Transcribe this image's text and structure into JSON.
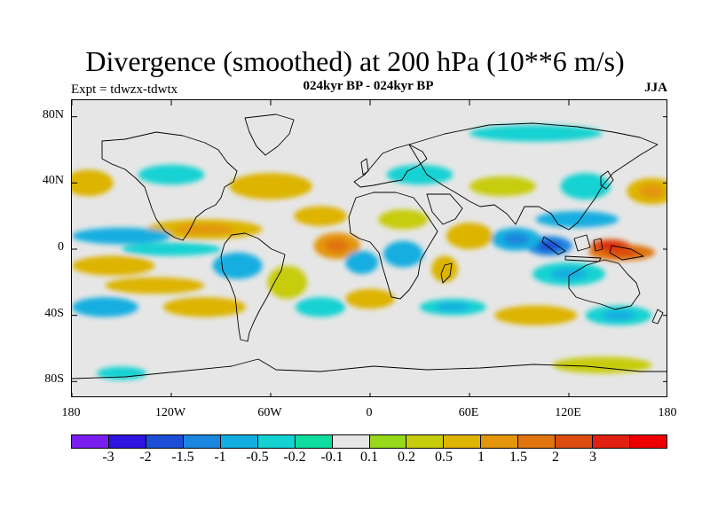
{
  "header": {
    "title": "Divergence (smoothed) at 200 hPa (10**6 m/s)",
    "subtitle": "024kyr BP - 024kyr BP",
    "experiment": "Expt = tdwzx-tdwtx",
    "season": "JJA"
  },
  "map": {
    "projection": "equirectangular",
    "lon_range": [
      -180,
      180
    ],
    "lat_range": [
      -90,
      90
    ],
    "background_color": "#e6e6e6",
    "coastline_color": "#000000",
    "lat_ticks": [
      {
        "lat": 80,
        "label": "80N"
      },
      {
        "lat": 40,
        "label": "40N"
      },
      {
        "lat": 0,
        "label": "0"
      },
      {
        "lat": -40,
        "label": "40S"
      },
      {
        "lat": -80,
        "label": "80S"
      }
    ],
    "lon_ticks": [
      {
        "lon": -180,
        "label": "180"
      },
      {
        "lon": -120,
        "label": "120W"
      },
      {
        "lon": -60,
        "label": "60W"
      },
      {
        "lon": 0,
        "label": "0"
      },
      {
        "lon": 60,
        "label": "60E"
      },
      {
        "lon": 120,
        "label": "120E"
      },
      {
        "lon": 180,
        "label": "180"
      }
    ]
  },
  "colorbar": {
    "colors": [
      "#7a1ff0",
      "#2f14e0",
      "#1c4fd6",
      "#1a86de",
      "#12aee0",
      "#14d2d2",
      "#10dca0",
      "#e6e6e6",
      "#98d81a",
      "#c7cc0a",
      "#ddb400",
      "#e3960c",
      "#e0740e",
      "#dc4c10",
      "#e02010",
      "#ee0000"
    ],
    "labels": [
      "-3",
      "-2",
      "-1.5",
      "-1",
      "-0.5",
      "-0.2",
      "-0.1",
      "0.1",
      "0.2",
      "0.5",
      "1",
      "1.5",
      "2",
      "3"
    ]
  },
  "chart_data": {
    "type": "heatmap",
    "title": "Divergence (smoothed) at 200 hPa (10**6 m/s)",
    "subtitle": "024kyr BP - 024kyr BP",
    "levels": [
      -3,
      -2,
      -1.5,
      -1,
      -0.5,
      -0.2,
      -0.1,
      0.1,
      0.2,
      0.5,
      1,
      1.5,
      2,
      3
    ],
    "xlim": [
      -180,
      180
    ],
    "ylim": [
      -90,
      90
    ],
    "features": [
      {
        "lon": 152,
        "lat": -2,
        "rlon": 20,
        "rlat": 5,
        "value": 1.6
      },
      {
        "lon": 145,
        "lat": 2,
        "rlon": 12,
        "rlat": 4,
        "value": 2.2
      },
      {
        "lon": 108,
        "lat": 2,
        "rlon": 14,
        "rlat": 6,
        "value": -1.4
      },
      {
        "lon": 88,
        "lat": 6,
        "rlon": 15,
        "rlat": 7,
        "value": -0.8
      },
      {
        "lon": 125,
        "lat": 18,
        "rlon": 25,
        "rlat": 5,
        "value": -0.6
      },
      {
        "lon": 120,
        "lat": -15,
        "rlon": 22,
        "rlat": 7,
        "value": -0.5
      },
      {
        "lon": 60,
        "lat": 8,
        "rlon": 14,
        "rlat": 8,
        "value": 0.6
      },
      {
        "lon": 45,
        "lat": -12,
        "rlon": 8,
        "rlat": 8,
        "value": 0.5
      },
      {
        "lon": 20,
        "lat": -3,
        "rlon": 12,
        "rlat": 8,
        "value": -0.6
      },
      {
        "lon": 20,
        "lat": 18,
        "rlon": 15,
        "rlat": 6,
        "value": 0.4
      },
      {
        "lon": -20,
        "lat": 2,
        "rlon": 14,
        "rlat": 8,
        "value": 1.3
      },
      {
        "lon": -5,
        "lat": -8,
        "rlon": 10,
        "rlat": 7,
        "value": -0.6
      },
      {
        "lon": -30,
        "lat": 20,
        "rlon": 16,
        "rlat": 6,
        "value": 0.5
      },
      {
        "lon": -100,
        "lat": 12,
        "rlon": 35,
        "rlat": 6,
        "value": 0.9
      },
      {
        "lon": -150,
        "lat": 8,
        "rlon": 30,
        "rlat": 5,
        "value": -0.6
      },
      {
        "lon": -120,
        "lat": 0,
        "rlon": 30,
        "rlat": 4,
        "value": -0.4
      },
      {
        "lon": -80,
        "lat": -10,
        "rlon": 15,
        "rlat": 8,
        "value": -0.6
      },
      {
        "lon": -155,
        "lat": -10,
        "rlon": 25,
        "rlat": 6,
        "value": 0.5
      },
      {
        "lon": -130,
        "lat": -22,
        "rlon": 30,
        "rlat": 5,
        "value": 0.6
      },
      {
        "lon": -160,
        "lat": -35,
        "rlon": 20,
        "rlat": 6,
        "value": -0.6
      },
      {
        "lon": -100,
        "lat": -35,
        "rlon": 25,
        "rlat": 6,
        "value": 0.5
      },
      {
        "lon": -50,
        "lat": -20,
        "rlon": 12,
        "rlat": 10,
        "value": 0.4
      },
      {
        "lon": -30,
        "lat": -35,
        "rlon": 15,
        "rlat": 6,
        "value": -0.4
      },
      {
        "lon": 0,
        "lat": -30,
        "rlon": 15,
        "rlat": 6,
        "value": 0.5
      },
      {
        "lon": 50,
        "lat": -35,
        "rlon": 20,
        "rlat": 5,
        "value": -0.5
      },
      {
        "lon": 100,
        "lat": -40,
        "rlon": 25,
        "rlat": 6,
        "value": 0.5
      },
      {
        "lon": 150,
        "lat": -40,
        "rlon": 20,
        "rlat": 6,
        "value": -0.5
      },
      {
        "lon": 170,
        "lat": 35,
        "rlon": 15,
        "rlat": 8,
        "value": 0.9
      },
      {
        "lon": 130,
        "lat": 38,
        "rlon": 15,
        "rlat": 8,
        "value": -0.4
      },
      {
        "lon": 80,
        "lat": 38,
        "rlon": 20,
        "rlat": 6,
        "value": 0.4
      },
      {
        "lon": 30,
        "lat": 45,
        "rlon": 20,
        "rlat": 6,
        "value": -0.4
      },
      {
        "lon": -60,
        "lat": 38,
        "rlon": 25,
        "rlat": 8,
        "value": 0.5
      },
      {
        "lon": -120,
        "lat": 45,
        "rlon": 20,
        "rlat": 6,
        "value": -0.4
      },
      {
        "lon": -170,
        "lat": 40,
        "rlon": 15,
        "rlat": 8,
        "value": 0.5
      },
      {
        "lon": 100,
        "lat": 70,
        "rlon": 40,
        "rlat": 5,
        "value": -0.3
      },
      {
        "lon": 140,
        "lat": -70,
        "rlon": 30,
        "rlat": 5,
        "value": 0.4
      },
      {
        "lon": -150,
        "lat": -75,
        "rlon": 15,
        "rlat": 4,
        "value": -0.3
      }
    ]
  }
}
